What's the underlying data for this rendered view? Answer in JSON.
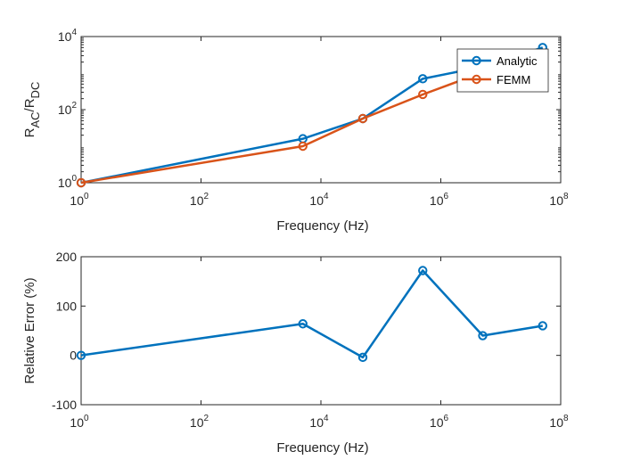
{
  "chart_data": [
    {
      "type": "line",
      "xscale": "log",
      "yscale": "log",
      "xlim": [
        1,
        100000000
      ],
      "ylim": [
        1,
        10000
      ],
      "xticks": [
        {
          "value": 1,
          "base": "10",
          "exp": "0"
        },
        {
          "value": 100,
          "base": "10",
          "exp": "2"
        },
        {
          "value": 10000,
          "base": "10",
          "exp": "4"
        },
        {
          "value": 1000000,
          "base": "10",
          "exp": "6"
        },
        {
          "value": 100000000,
          "base": "10",
          "exp": "8"
        }
      ],
      "yticks": [
        {
          "value": 1,
          "base": "10",
          "exp": "0"
        },
        {
          "value": 100,
          "base": "10",
          "exp": "2"
        },
        {
          "value": 10000,
          "base": "10",
          "exp": "4"
        }
      ],
      "xlabel": "Frequency (Hz)",
      "ylabel": {
        "main1": "R",
        "sub1": "AC",
        "main2": "/R",
        "sub2": "DC"
      },
      "grid": false,
      "legend": "top-right",
      "x": [
        1,
        5000,
        50000,
        500000,
        5000000,
        50000000
      ],
      "series": [
        {
          "name": "Analytic",
          "color": "#0072BD",
          "values": [
            1,
            16,
            57,
            700,
            1500,
            5000
          ]
        },
        {
          "name": "FEMM",
          "color": "#D95319",
          "values": [
            1,
            10,
            57,
            260,
            1050,
            3100
          ]
        }
      ]
    },
    {
      "type": "line",
      "xscale": "log",
      "yscale": "linear",
      "xlim": [
        1,
        100000000
      ],
      "ylim": [
        -100,
        200
      ],
      "xticks": [
        {
          "value": 1,
          "base": "10",
          "exp": "0"
        },
        {
          "value": 100,
          "base": "10",
          "exp": "2"
        },
        {
          "value": 10000,
          "base": "10",
          "exp": "4"
        },
        {
          "value": 1000000,
          "base": "10",
          "exp": "6"
        },
        {
          "value": 100000000,
          "base": "10",
          "exp": "8"
        }
      ],
      "yticks": [
        {
          "value": -100,
          "label": "-100"
        },
        {
          "value": 0,
          "label": "0"
        },
        {
          "value": 100,
          "label": "100"
        },
        {
          "value": 200,
          "label": "200"
        }
      ],
      "xlabel": "Frequency (Hz)",
      "ylabel": "Relative Error (%)",
      "grid": false,
      "x": [
        1,
        5000,
        50000,
        500000,
        5000000,
        50000000
      ],
      "series": [
        {
          "color": "#0072BD",
          "values": [
            0,
            64,
            -4,
            172,
            40,
            60
          ]
        }
      ]
    }
  ]
}
